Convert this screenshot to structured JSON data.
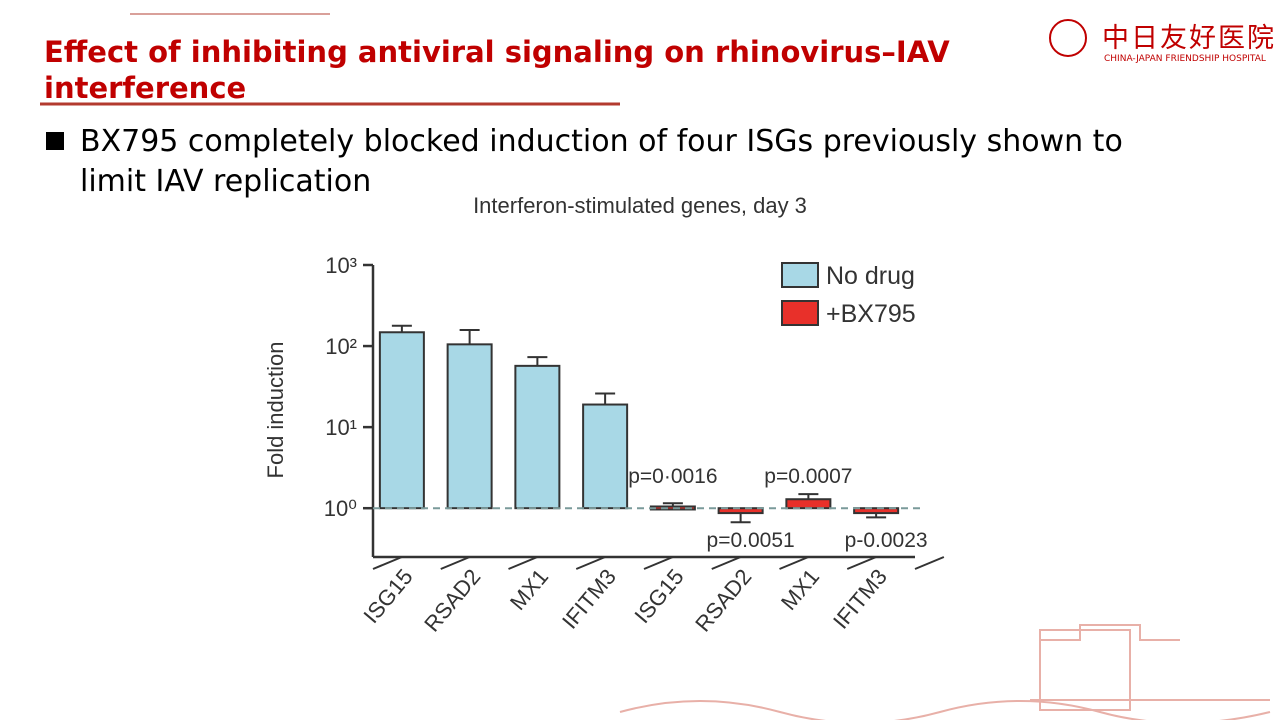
{
  "slide_title": "Effect of inhibiting antiviral signaling on rhinovirus–IAV interference",
  "bullet": "BX795 completely blocked induction of four ISGs previously shown to limit IAV replication",
  "logo": {
    "name": "中日友好医院",
    "subtitle": "CHINA-JAPAN FRIENDSHIP HOSPITAL"
  },
  "chart_data": {
    "type": "bar",
    "title": "Interferon-stimulated genes, day 3",
    "y_label": "Fold induction",
    "log_scale": true,
    "reference_line": 1,
    "categories": [
      "ISG15",
      "RSAD2",
      "MX1",
      "IFITM3",
      "ISG15",
      "RSAD2",
      "MX1",
      "IFITM3"
    ],
    "series": [
      {
        "name": "No drug",
        "color": "#a8d8e6",
        "values": [
          148,
          105,
          57,
          19,
          null,
          null,
          null,
          null
        ],
        "errors": [
          30,
          53,
          16,
          7,
          null,
          null,
          null,
          null
        ]
      },
      {
        "name": "+BX795",
        "color": "#e8302a",
        "values": [
          null,
          null,
          null,
          null,
          1.05,
          0.87,
          1.29,
          0.87
        ],
        "errors": [
          null,
          null,
          null,
          null,
          0.1,
          0.2,
          0.2,
          0.1
        ]
      }
    ],
    "annotations": [
      "p=0·0016",
      "p=0.0051",
      "p=0.0007",
      "p-0.0023"
    ],
    "ylim": [
      0.25,
      1000
    ],
    "yticks": [
      {
        "value": 1,
        "label": "10⁰"
      },
      {
        "value": 10,
        "label": "10¹"
      },
      {
        "value": 100,
        "label": "10²"
      },
      {
        "value": 1000,
        "label": "10³"
      }
    ],
    "legend": "top-right"
  }
}
